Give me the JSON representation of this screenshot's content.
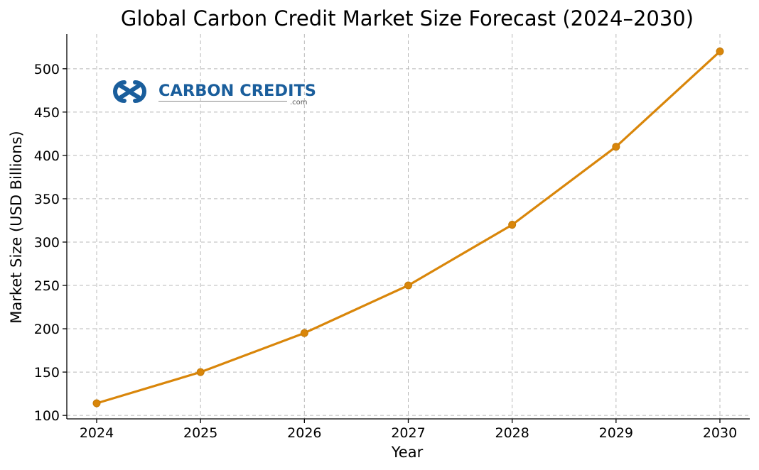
{
  "chart_data": {
    "type": "line",
    "title": "Global Carbon Credit Market Size Forecast (2024–2030)",
    "xlabel": "Year",
    "ylabel": "Market Size (USD Billions)",
    "x": [
      2024,
      2025,
      2026,
      2027,
      2028,
      2029,
      2030
    ],
    "values": [
      114,
      150,
      195,
      250,
      320,
      410,
      520
    ],
    "ylim": [
      96,
      540
    ],
    "yticks": [
      100,
      150,
      200,
      250,
      300,
      350,
      400,
      450,
      500
    ],
    "grid": true,
    "line_color": "#d9860a",
    "marker": "circle"
  },
  "logo": {
    "text": "CARBON CREDITS",
    "subtext": ".com",
    "color": "#1a5e9c"
  }
}
